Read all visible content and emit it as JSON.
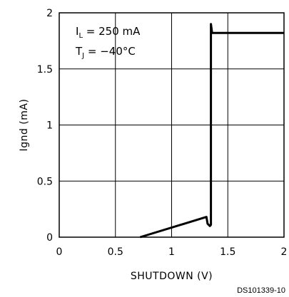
{
  "chart_data": {
    "type": "line",
    "title": "",
    "xlabel": "SHUTDOWN (V)",
    "ylabel": "Ignd (mA)",
    "xlim": [
      0,
      2
    ],
    "ylim": [
      0,
      2
    ],
    "x_ticks": [
      "0",
      "0.5",
      "1",
      "1.5",
      "2"
    ],
    "y_ticks": [
      "0",
      "0.5",
      "1",
      "1.5",
      "2"
    ],
    "x_tick_values": [
      0,
      0.5,
      1,
      1.5,
      2
    ],
    "y_tick_values": [
      0,
      0.5,
      1,
      1.5,
      2
    ],
    "grid": true,
    "conditions": {
      "line1_main": "I",
      "line1_sub": "L",
      "line1_rest": " = 250 mA",
      "line2_main": "T",
      "line2_sub": "J",
      "line2_rest": " = −40°C"
    },
    "series": [
      {
        "x": [
          0.72,
          1.31,
          1.32,
          1.34,
          1.35,
          1.35,
          1.36,
          2.0
        ],
        "y": [
          0.0,
          0.18,
          0.12,
          0.1,
          0.11,
          1.9,
          1.82,
          1.82
        ]
      }
    ],
    "footer": "DS101339-10",
    "line_color": "#000000"
  }
}
